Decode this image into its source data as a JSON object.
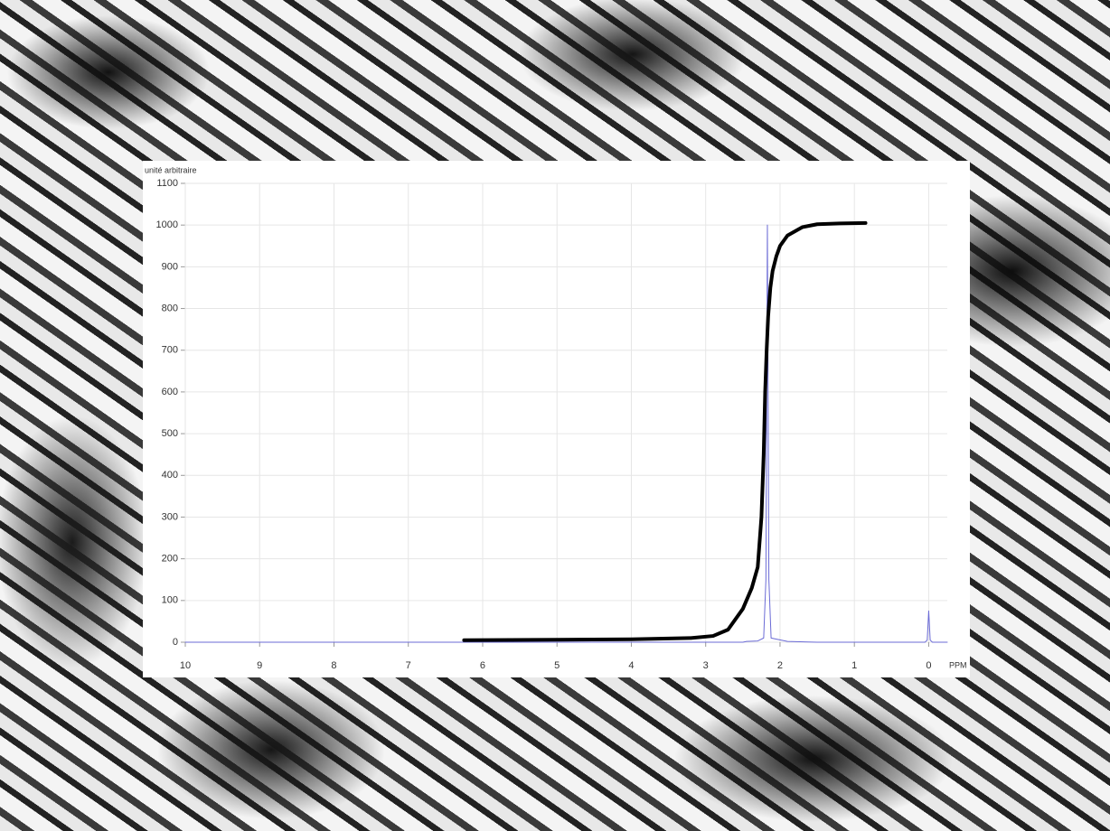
{
  "chart_data": {
    "type": "line",
    "y_label": "unité arbitraire",
    "x_label": "PPM",
    "xlim": [
      10,
      -0.25
    ],
    "xticks": [
      10,
      9,
      8,
      7,
      6,
      5,
      4,
      3,
      2,
      1,
      0
    ],
    "ylim": [
      0,
      1100
    ],
    "yticks": [
      0,
      100,
      200,
      300,
      400,
      500,
      600,
      700,
      800,
      900,
      1000,
      1100
    ],
    "grid": true,
    "series": [
      {
        "color": "#6b6bd6",
        "width": 1,
        "x": [
          10,
          2.5,
          2.45,
          2.3,
          2.22,
          2.19,
          2.17,
          2.15,
          2.12,
          1.9,
          1.5,
          0.05,
          0.02,
          0,
          -0.02,
          -0.05,
          -0.25
        ],
        "values": [
          0,
          0,
          2,
          3,
          10,
          150,
          1000,
          150,
          10,
          2,
          0,
          0,
          5,
          75,
          5,
          0,
          0
        ]
      },
      {
        "color": "#000000",
        "width": 4,
        "x": [
          6.25,
          5,
          4,
          3.2,
          2.9,
          2.7,
          2.5,
          2.38,
          2.3,
          2.25,
          2.22,
          2.2,
          2.18,
          2.16,
          2.13,
          2.1,
          2.05,
          2.0,
          1.9,
          1.7,
          1.5,
          1.2,
          0.85
        ],
        "values": [
          5,
          6,
          7,
          10,
          15,
          30,
          80,
          130,
          180,
          300,
          450,
          600,
          700,
          780,
          850,
          890,
          925,
          950,
          975,
          995,
          1002,
          1004,
          1005
        ]
      }
    ]
  }
}
